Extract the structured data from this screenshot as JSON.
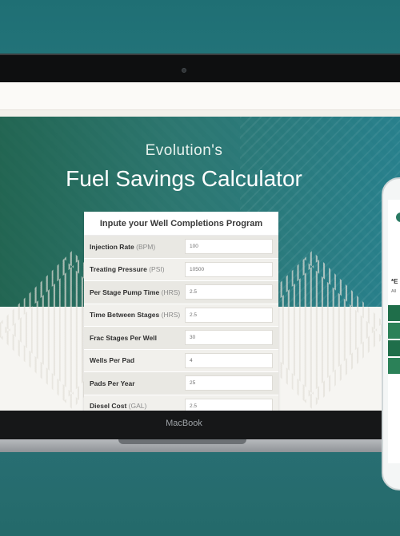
{
  "hero": {
    "subtitle": "Evolution's",
    "title": "Fuel Savings Calculator"
  },
  "form": {
    "heading": "Inpute your Well Completions Program",
    "rows": [
      {
        "label": "Injection Rate",
        "unit": "(BPM)",
        "value": "100"
      },
      {
        "label": "Treating Pressure",
        "unit": "(PSI)",
        "value": "10500"
      },
      {
        "label": "Per Stage Pump Time",
        "unit": "(HRS)",
        "value": "2.5"
      },
      {
        "label": "Time Between Stages",
        "unit": "(HRS)",
        "value": "2.5"
      },
      {
        "label": "Frac Stages Per Well",
        "unit": "",
        "value": "30"
      },
      {
        "label": "Wells Per Pad",
        "unit": "",
        "value": "4"
      },
      {
        "label": "Pads Per Year",
        "unit": "",
        "value": "25"
      },
      {
        "label": "Diesel Cost",
        "unit": "(GAL)",
        "value": "2.5"
      }
    ]
  },
  "laptop": {
    "brand": "MacBook"
  },
  "phone": {
    "text1": "*E",
    "text2": "All"
  },
  "colors": {
    "accent": "#1f6e4a",
    "hero": "#2a7a72"
  }
}
